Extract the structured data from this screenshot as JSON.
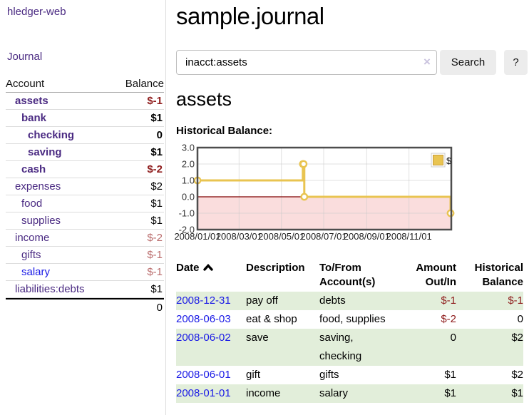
{
  "app": {
    "title": "hledger-web",
    "nav_journal": "Journal"
  },
  "sidebar": {
    "accounts_header": {
      "account": "Account",
      "balance": "Balance"
    },
    "accounts": [
      {
        "name": "assets",
        "indent": 1,
        "balance": "$-1",
        "bold": true,
        "neg": "strong",
        "link_color": "purple"
      },
      {
        "name": "bank",
        "indent": 2,
        "balance": "$1",
        "bold": true,
        "neg": "none",
        "link_color": "purple"
      },
      {
        "name": "checking",
        "indent": 3,
        "balance": "0",
        "bold": true,
        "neg": "none",
        "link_color": "purple"
      },
      {
        "name": "saving",
        "indent": 3,
        "balance": "$1",
        "bold": true,
        "neg": "none",
        "link_color": "purple"
      },
      {
        "name": "cash",
        "indent": 2,
        "balance": "$-2",
        "bold": true,
        "neg": "strong",
        "link_color": "purple"
      },
      {
        "name": "expenses",
        "indent": 1,
        "balance": "$2",
        "bold": false,
        "neg": "none",
        "link_color": "purple"
      },
      {
        "name": "food",
        "indent": 2,
        "balance": "$1",
        "bold": false,
        "neg": "none",
        "link_color": "purple"
      },
      {
        "name": "supplies",
        "indent": 2,
        "balance": "$1",
        "bold": false,
        "neg": "none",
        "link_color": "purple"
      },
      {
        "name": "income",
        "indent": 1,
        "balance": "$-2",
        "bold": false,
        "neg": "soft",
        "link_color": "purple"
      },
      {
        "name": "gifts",
        "indent": 2,
        "balance": "$-1",
        "bold": false,
        "neg": "soft",
        "link_color": "purple"
      },
      {
        "name": "salary",
        "indent": 2,
        "balance": "$-1",
        "bold": false,
        "neg": "soft",
        "link_color": "blue"
      },
      {
        "name": "liabilities:debts",
        "indent": 1,
        "balance": "$1",
        "bold": false,
        "neg": "none",
        "link_color": "purple"
      }
    ],
    "total": "0"
  },
  "header": {
    "title": "sample.journal"
  },
  "search": {
    "value": "inacct:assets",
    "clear_icon": "×",
    "button_label": "Search",
    "help_label": "?"
  },
  "account_page": {
    "title": "assets",
    "chart_label": "Historical Balance:"
  },
  "chart_data": {
    "type": "line",
    "title": "Historical Balance",
    "step": true,
    "series": [
      {
        "name": "$",
        "points": [
          [
            "2008-01-01",
            1
          ],
          [
            "2008-06-01",
            2
          ],
          [
            "2008-06-02",
            2
          ],
          [
            "2008-06-03",
            0
          ],
          [
            "2008-12-31",
            -1
          ]
        ]
      }
    ],
    "x_range": [
      "2008-01-01",
      "2009-01-01"
    ],
    "x_tick_labels": [
      "2008/01/01",
      "2008/03/01",
      "2008/05/01",
      "2008/07/01",
      "2008/09/01",
      "2008/11/01"
    ],
    "x_tick_dates": [
      "2008-01-01",
      "2008-03-01",
      "2008-05-01",
      "2008-07-01",
      "2008-09-01",
      "2008-11-01"
    ],
    "y_tick_labels": [
      "3.0",
      "2.0",
      "1.0",
      "0.0",
      "-1.0",
      "-2.0"
    ],
    "y_tick_values": [
      3,
      2,
      1,
      0,
      -1,
      -2
    ],
    "ylim": [
      -2,
      3
    ],
    "grid": true,
    "legend": {
      "label": "$",
      "position": "top-right"
    },
    "colors": {
      "line": "#e9c451",
      "marker_fill": "#ffffff",
      "negative_region": "#fadddd",
      "zero_line": "#7f0000",
      "border": "#4d4d4d",
      "gridline": "#c9c9c9"
    }
  },
  "register": {
    "header": {
      "date": "Date",
      "description": "Description",
      "accounts": "To/From Account(s)",
      "amount": "Amount Out/In",
      "balance": "Historical Balance"
    },
    "rows": [
      {
        "date": "2008-12-31",
        "description": "pay off",
        "accounts": "debts",
        "amount": "$-1",
        "amount_neg": true,
        "balance": "$-1",
        "balance_neg": true
      },
      {
        "date": "2008-06-03",
        "description": "eat & shop",
        "accounts": "food, supplies",
        "amount": "$-2",
        "amount_neg": true,
        "balance": "0",
        "balance_neg": false
      },
      {
        "date": "2008-06-02",
        "description": "save",
        "accounts": "saving, checking",
        "amount": "0",
        "amount_neg": false,
        "balance": "$2",
        "balance_neg": false
      },
      {
        "date": "2008-06-01",
        "description": "gift",
        "accounts": "gifts",
        "amount": "$1",
        "amount_neg": false,
        "balance": "$2",
        "balance_neg": false
      },
      {
        "date": "2008-01-01",
        "description": "income",
        "accounts": "salary",
        "amount": "$1",
        "amount_neg": false,
        "balance": "$1",
        "balance_neg": false
      }
    ]
  },
  "colors": {
    "link_purple": "#4a2a82",
    "link_blue": "#1a1ae6",
    "negative_strong": "#8f1d1d",
    "negative_soft": "#ba6c6c",
    "row_stripe_green": "#e2eeda"
  }
}
